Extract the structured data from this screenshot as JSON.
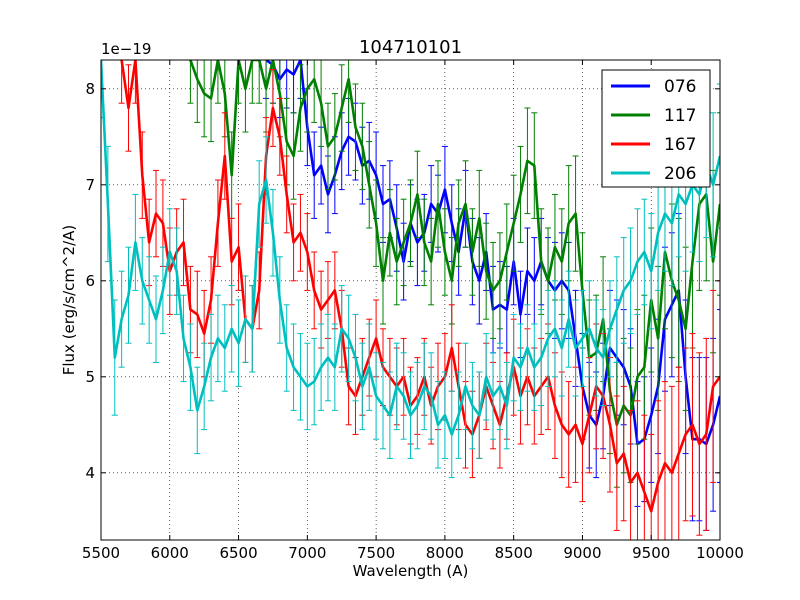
{
  "chart_data": {
    "type": "line",
    "title": "104710101",
    "xlabel": "Wavelength (A)",
    "ylabel": "Flux (erg/s/cm^2/A)",
    "offset_text": "1e−19",
    "xlim": [
      5500,
      10000
    ],
    "ylim": [
      3.3,
      8.3
    ],
    "y_scale_exponent": -19,
    "x_ticks": [
      5500,
      6000,
      6500,
      7000,
      7500,
      8000,
      8500,
      9000,
      9500,
      10000
    ],
    "y_ticks": [
      4,
      5,
      6,
      7,
      8
    ],
    "grid": true,
    "legend_position": "top-right",
    "series": [
      {
        "name": "076",
        "color": "#0000ff",
        "x": [
          6700,
          6750,
          6800,
          6850,
          6900,
          6950,
          7000,
          7050,
          7100,
          7150,
          7200,
          7250,
          7300,
          7350,
          7400,
          7450,
          7500,
          7550,
          7600,
          7650,
          7700,
          7750,
          7800,
          7850,
          7900,
          7950,
          8000,
          8050,
          8100,
          8150,
          8200,
          8250,
          8300,
          8350,
          8400,
          8450,
          8500,
          8550,
          8600,
          8650,
          8700,
          8750,
          8800,
          8850,
          8900,
          8950,
          9000,
          9050,
          9100,
          9150,
          9200,
          9250,
          9300,
          9350,
          9400,
          9450,
          9500,
          9550,
          9600,
          9650,
          9700,
          9750,
          9800,
          9850,
          9900,
          9950,
          10000
        ],
        "y": [
          8.3,
          8.25,
          8.1,
          8.2,
          8.15,
          8.3,
          7.6,
          7.1,
          7.2,
          6.9,
          7.1,
          7.35,
          7.5,
          7.45,
          7.2,
          7.25,
          7.1,
          6.8,
          6.85,
          6.55,
          6.2,
          6.6,
          6.4,
          6.5,
          6.8,
          6.7,
          6.95,
          6.6,
          6.3,
          6.75,
          6.2,
          6.0,
          6.3,
          5.7,
          5.75,
          5.7,
          6.2,
          5.65,
          6.1,
          6.0,
          6.2,
          6.0,
          5.9,
          6.0,
          5.9,
          5.4,
          4.9,
          4.6,
          4.5,
          4.8,
          5.3,
          5.2,
          5.1,
          4.9,
          4.3,
          4.35,
          4.6,
          4.9,
          5.6,
          5.75,
          5.9,
          5.0,
          4.35,
          4.35,
          4.3,
          4.5,
          4.8
        ],
        "err": [
          0.4,
          0.4,
          0.4,
          0.4,
          0.4,
          0.4,
          0.4,
          0.45,
          0.4,
          0.4,
          0.4,
          0.4,
          0.4,
          0.4,
          0.4,
          0.4,
          0.45,
          0.4,
          0.4,
          0.45,
          0.4,
          0.4,
          0.45,
          0.4,
          0.4,
          0.4,
          0.45,
          0.4,
          0.45,
          0.4,
          0.45,
          0.45,
          0.4,
          0.45,
          0.45,
          0.45,
          0.45,
          0.45,
          0.45,
          0.45,
          0.45,
          0.45,
          0.5,
          0.5,
          0.5,
          0.5,
          0.55,
          0.55,
          0.55,
          0.55,
          0.6,
          0.6,
          0.6,
          0.6,
          0.65,
          0.65,
          0.7,
          0.7,
          0.75,
          0.75,
          0.8,
          0.8,
          0.85,
          0.85,
          0.9,
          0.9,
          0.9
        ]
      },
      {
        "name": "117",
        "color": "#008000",
        "x": [
          6150,
          6200,
          6250,
          6300,
          6350,
          6400,
          6450,
          6500,
          6550,
          6600,
          6650,
          6700,
          6750,
          6800,
          6850,
          6900,
          6950,
          7000,
          7050,
          7100,
          7150,
          7200,
          7250,
          7300,
          7350,
          7400,
          7450,
          7500,
          7550,
          7600,
          7650,
          7700,
          7750,
          7800,
          7850,
          7900,
          7950,
          8000,
          8050,
          8100,
          8150,
          8200,
          8250,
          8300,
          8350,
          8400,
          8450,
          8500,
          8550,
          8600,
          8650,
          8700,
          8750,
          8800,
          8850,
          8900,
          8950,
          9000,
          9050,
          9100,
          9150,
          9200,
          9250,
          9300,
          9350,
          9400,
          9450,
          9500,
          9550,
          9600,
          9650,
          9700,
          9750,
          9800,
          9850,
          9900,
          9950,
          10000
        ],
        "y": [
          8.3,
          8.1,
          7.95,
          7.9,
          8.3,
          7.95,
          7.1,
          8.3,
          8.0,
          8.3,
          8.3,
          8.0,
          8.3,
          7.95,
          7.45,
          7.3,
          7.8,
          8.0,
          8.1,
          7.85,
          7.4,
          7.5,
          7.8,
          8.1,
          7.6,
          7.4,
          7.0,
          6.6,
          6.0,
          6.5,
          6.2,
          6.4,
          6.6,
          6.9,
          6.4,
          6.2,
          6.8,
          6.3,
          6.0,
          6.6,
          6.8,
          6.3,
          6.65,
          6.1,
          5.9,
          6.0,
          6.3,
          6.6,
          6.9,
          7.25,
          7.2,
          6.2,
          6.0,
          6.35,
          6.2,
          6.6,
          6.7,
          5.9,
          5.2,
          5.25,
          5.6,
          4.85,
          4.5,
          4.7,
          4.6,
          5.0,
          5.1,
          5.8,
          5.4,
          6.3,
          6.0,
          5.8,
          5.5,
          6.2,
          6.8,
          6.9,
          6.2,
          6.8
        ],
        "err": [
          0.45,
          0.45,
          0.45,
          0.45,
          0.45,
          0.45,
          0.45,
          0.45,
          0.45,
          0.45,
          0.45,
          0.45,
          0.45,
          0.45,
          0.45,
          0.45,
          0.45,
          0.45,
          0.45,
          0.45,
          0.45,
          0.45,
          0.45,
          0.45,
          0.45,
          0.45,
          0.45,
          0.45,
          0.45,
          0.45,
          0.45,
          0.45,
          0.45,
          0.45,
          0.45,
          0.45,
          0.45,
          0.45,
          0.45,
          0.45,
          0.45,
          0.45,
          0.5,
          0.5,
          0.5,
          0.5,
          0.5,
          0.5,
          0.5,
          0.55,
          0.55,
          0.55,
          0.55,
          0.55,
          0.55,
          0.6,
          0.6,
          0.6,
          0.6,
          0.6,
          0.65,
          0.65,
          0.65,
          0.7,
          0.7,
          0.7,
          0.75,
          0.75,
          0.75,
          0.8,
          0.8,
          0.85,
          0.85,
          0.9,
          0.9,
          0.9,
          0.95,
          0.95
        ]
      },
      {
        "name": "167",
        "color": "#ff0000",
        "x": [
          5650,
          5700,
          5750,
          5800,
          5850,
          5900,
          5950,
          6000,
          6050,
          6100,
          6150,
          6200,
          6250,
          6300,
          6350,
          6400,
          6450,
          6500,
          6550,
          6600,
          6650,
          6700,
          6750,
          6800,
          6850,
          6900,
          6950,
          7000,
          7050,
          7100,
          7150,
          7200,
          7250,
          7300,
          7350,
          7400,
          7450,
          7500,
          7550,
          7600,
          7650,
          7700,
          7750,
          7800,
          7850,
          7900,
          7950,
          8000,
          8050,
          8100,
          8150,
          8200,
          8250,
          8300,
          8350,
          8400,
          8450,
          8500,
          8550,
          8600,
          8650,
          8700,
          8750,
          8800,
          8850,
          8900,
          8950,
          9000,
          9050,
          9100,
          9150,
          9200,
          9250,
          9300,
          9350,
          9400,
          9450,
          9500,
          9550,
          9600,
          9650,
          9700,
          9750,
          9800,
          9850,
          9900,
          9950,
          10000
        ],
        "y": [
          8.3,
          7.8,
          8.3,
          7.1,
          6.4,
          6.7,
          6.6,
          6.1,
          6.3,
          6.4,
          5.7,
          5.65,
          5.45,
          5.8,
          6.6,
          7.3,
          6.2,
          6.35,
          5.6,
          5.5,
          5.9,
          7.3,
          7.8,
          7.5,
          6.9,
          6.4,
          6.5,
          6.3,
          5.9,
          5.7,
          5.8,
          5.9,
          5.5,
          4.9,
          4.8,
          5.0,
          5.2,
          5.4,
          5.1,
          5.0,
          4.9,
          5.0,
          4.7,
          4.8,
          5.0,
          4.7,
          4.9,
          5.0,
          5.3,
          4.9,
          4.5,
          4.4,
          4.6,
          4.9,
          4.7,
          4.5,
          4.8,
          5.1,
          4.8,
          5.0,
          4.8,
          4.9,
          5.0,
          4.7,
          4.5,
          4.4,
          4.5,
          4.3,
          4.6,
          4.9,
          4.8,
          4.5,
          4.1,
          4.2,
          3.9,
          4.0,
          3.8,
          3.6,
          3.9,
          4.1,
          4.0,
          4.2,
          4.4,
          4.5,
          4.3,
          4.4,
          4.9,
          5.0
        ],
        "err": [
          0.45,
          0.45,
          0.45,
          0.45,
          0.45,
          0.45,
          0.45,
          0.45,
          0.45,
          0.45,
          0.45,
          0.45,
          0.45,
          0.45,
          0.45,
          0.45,
          0.45,
          0.45,
          0.45,
          0.45,
          0.4,
          0.4,
          0.4,
          0.4,
          0.4,
          0.4,
          0.4,
          0.4,
          0.4,
          0.4,
          0.4,
          0.4,
          0.4,
          0.4,
          0.4,
          0.4,
          0.4,
          0.4,
          0.4,
          0.4,
          0.4,
          0.4,
          0.4,
          0.4,
          0.4,
          0.4,
          0.45,
          0.45,
          0.45,
          0.45,
          0.45,
          0.45,
          0.45,
          0.45,
          0.45,
          0.45,
          0.45,
          0.5,
          0.5,
          0.5,
          0.5,
          0.5,
          0.55,
          0.55,
          0.55,
          0.55,
          0.6,
          0.6,
          0.6,
          0.65,
          0.65,
          0.7,
          0.7,
          0.7,
          0.75,
          0.75,
          0.8,
          0.8,
          0.85,
          0.85,
          0.9,
          0.9,
          0.9,
          0.95,
          0.95,
          1.0,
          1.0,
          1.0
        ]
      },
      {
        "name": "206",
        "color": "#00bfbf",
        "x": [
          5500,
          5550,
          5600,
          5650,
          5700,
          5750,
          5800,
          5850,
          5900,
          5950,
          6000,
          6050,
          6100,
          6150,
          6200,
          6250,
          6300,
          6350,
          6400,
          6450,
          6500,
          6550,
          6600,
          6650,
          6700,
          6750,
          6800,
          6850,
          6900,
          6950,
          7000,
          7050,
          7100,
          7150,
          7200,
          7250,
          7300,
          7350,
          7400,
          7450,
          7500,
          7550,
          7600,
          7650,
          7700,
          7750,
          7800,
          7850,
          7900,
          7950,
          8000,
          8050,
          8100,
          8150,
          8200,
          8250,
          8300,
          8350,
          8400,
          8450,
          8500,
          8550,
          8600,
          8650,
          8700,
          8750,
          8800,
          8850,
          8900,
          8950,
          9000,
          9050,
          9100,
          9150,
          9200,
          9250,
          9300,
          9350,
          9400,
          9450,
          9500,
          9550,
          9600,
          9650,
          9700,
          9750,
          9800,
          9850,
          9900,
          9950,
          10000
        ],
        "y": [
          8.3,
          6.8,
          5.2,
          5.6,
          5.85,
          6.4,
          6.0,
          5.8,
          5.6,
          5.9,
          6.3,
          6.1,
          5.4,
          5.1,
          4.65,
          4.9,
          5.2,
          5.4,
          5.3,
          5.5,
          5.35,
          5.6,
          5.5,
          6.8,
          7.05,
          6.5,
          5.8,
          5.3,
          5.1,
          5.0,
          4.9,
          4.95,
          5.1,
          5.2,
          5.1,
          5.5,
          5.4,
          5.2,
          4.9,
          5.1,
          4.8,
          4.7,
          4.6,
          4.9,
          4.8,
          4.6,
          4.7,
          4.9,
          4.8,
          4.5,
          4.6,
          4.4,
          4.6,
          4.9,
          4.7,
          4.6,
          5.0,
          4.8,
          4.9,
          4.7,
          5.2,
          5.1,
          5.3,
          5.1,
          5.2,
          5.4,
          5.5,
          5.3,
          5.6,
          5.3,
          5.4,
          5.5,
          5.3,
          5.2,
          5.5,
          5.7,
          5.9,
          6.0,
          6.2,
          6.3,
          6.1,
          6.5,
          6.7,
          6.6,
          6.9,
          6.8,
          7.0,
          6.9,
          7.2,
          7.0,
          7.3
        ],
        "err": [
          0.6,
          0.6,
          0.6,
          0.5,
          0.5,
          0.5,
          0.45,
          0.45,
          0.45,
          0.45,
          0.45,
          0.45,
          0.45,
          0.45,
          0.45,
          0.45,
          0.45,
          0.45,
          0.45,
          0.45,
          0.45,
          0.45,
          0.45,
          0.45,
          0.45,
          0.45,
          0.45,
          0.45,
          0.45,
          0.45,
          0.45,
          0.45,
          0.45,
          0.45,
          0.45,
          0.45,
          0.45,
          0.45,
          0.45,
          0.45,
          0.45,
          0.45,
          0.45,
          0.45,
          0.45,
          0.45,
          0.45,
          0.45,
          0.45,
          0.45,
          0.45,
          0.45,
          0.45,
          0.45,
          0.45,
          0.45,
          0.45,
          0.45,
          0.45,
          0.45,
          0.45,
          0.45,
          0.45,
          0.45,
          0.5,
          0.5,
          0.5,
          0.5,
          0.5,
          0.5,
          0.5,
          0.5,
          0.5,
          0.5,
          0.5,
          0.55,
          0.55,
          0.55,
          0.55,
          0.55,
          0.6,
          0.6,
          0.6,
          0.65,
          0.65,
          0.7,
          0.7,
          0.7,
          0.75,
          0.75,
          0.75
        ]
      }
    ]
  }
}
